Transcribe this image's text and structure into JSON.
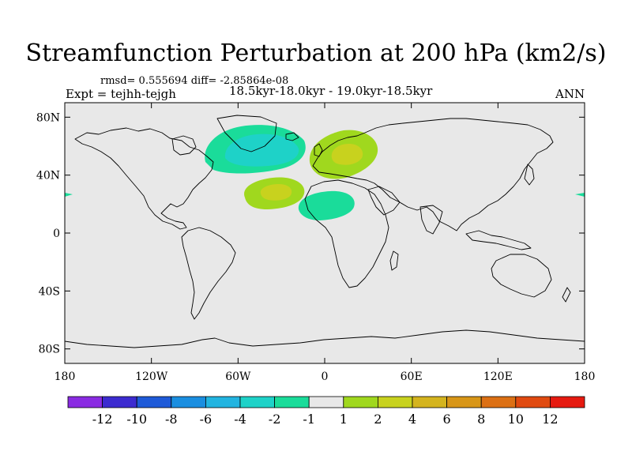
{
  "title": "Streamfunction Perturbation at 200 hPa (km2/s)",
  "stats_line": "rmsd= 0.555694 diff= -2.85864e-08",
  "left_label": "Expt = tejhh-tejgh",
  "center_label": "18.5kyr-18.0kyr - 19.0kyr-18.5kyr",
  "right_label": "ANN",
  "map": {
    "projection": "cylindrical-equidistant",
    "lon_range": [
      -180,
      180
    ],
    "lat_range": [
      -90,
      90
    ],
    "x_ticks": [
      {
        "value": -180,
        "label": "180"
      },
      {
        "value": -120,
        "label": "120W"
      },
      {
        "value": -60,
        "label": "60W"
      },
      {
        "value": 0,
        "label": "0"
      },
      {
        "value": 60,
        "label": "60E"
      },
      {
        "value": 120,
        "label": "120E"
      },
      {
        "value": 180,
        "label": "180"
      }
    ],
    "y_ticks": [
      {
        "value": 80,
        "label": "80N"
      },
      {
        "value": 40,
        "label": "40N"
      },
      {
        "value": 0,
        "label": "0"
      },
      {
        "value": -40,
        "label": "40S"
      },
      {
        "value": -80,
        "label": "80S"
      }
    ],
    "background_color": "#e8e8e8",
    "coastline_color": "#000000"
  },
  "colorbar": {
    "colors": [
      "#8a2be2",
      "#3c2bd0",
      "#1e5ad8",
      "#1a8ee0",
      "#22b4e0",
      "#1ed2c8",
      "#1adc9a",
      "#e8e8e8",
      "#a0d81e",
      "#c8d21e",
      "#d4b41e",
      "#d89618",
      "#dc7014",
      "#e04a10",
      "#e61a10"
    ],
    "labels": [
      "-12",
      "-10",
      "-8",
      "-6",
      "-4",
      "-2",
      "-1",
      "1",
      "2",
      "4",
      "6",
      "8",
      "10",
      "12"
    ]
  }
}
